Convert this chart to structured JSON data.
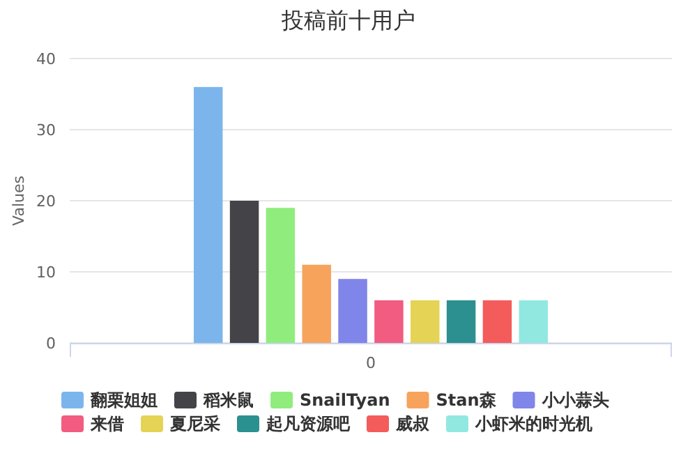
{
  "chart_data": {
    "type": "bar",
    "title": "投稿前十用户",
    "ylabel": "Values",
    "categories": [
      "0"
    ],
    "series": [
      {
        "name": "翻栗姐姐",
        "color": "#7cb5ec",
        "values": [
          36
        ]
      },
      {
        "name": "稻米鼠",
        "color": "#434348",
        "values": [
          20
        ]
      },
      {
        "name": "SnailTyan",
        "color": "#90ed7d",
        "values": [
          19
        ]
      },
      {
        "name": "Stan森",
        "color": "#f7a35c",
        "values": [
          11
        ]
      },
      {
        "name": "小小蒜头",
        "color": "#8085e9",
        "values": [
          9
        ]
      },
      {
        "name": "来借",
        "color": "#f15c80",
        "values": [
          6
        ]
      },
      {
        "name": "夏尼采",
        "color": "#e4d354",
        "values": [
          6
        ]
      },
      {
        "name": "起凡资源吧",
        "color": "#2b908f",
        "values": [
          6
        ]
      },
      {
        "name": "威叔",
        "color": "#f45b5b",
        "values": [
          6
        ]
      },
      {
        "name": "小虾米的时光机",
        "color": "#91e8e1",
        "values": [
          6
        ]
      }
    ],
    "ylim": [
      0,
      40
    ],
    "yticks": [
      0,
      10,
      20,
      30,
      40
    ],
    "grid": "y",
    "legend": "bottom"
  }
}
